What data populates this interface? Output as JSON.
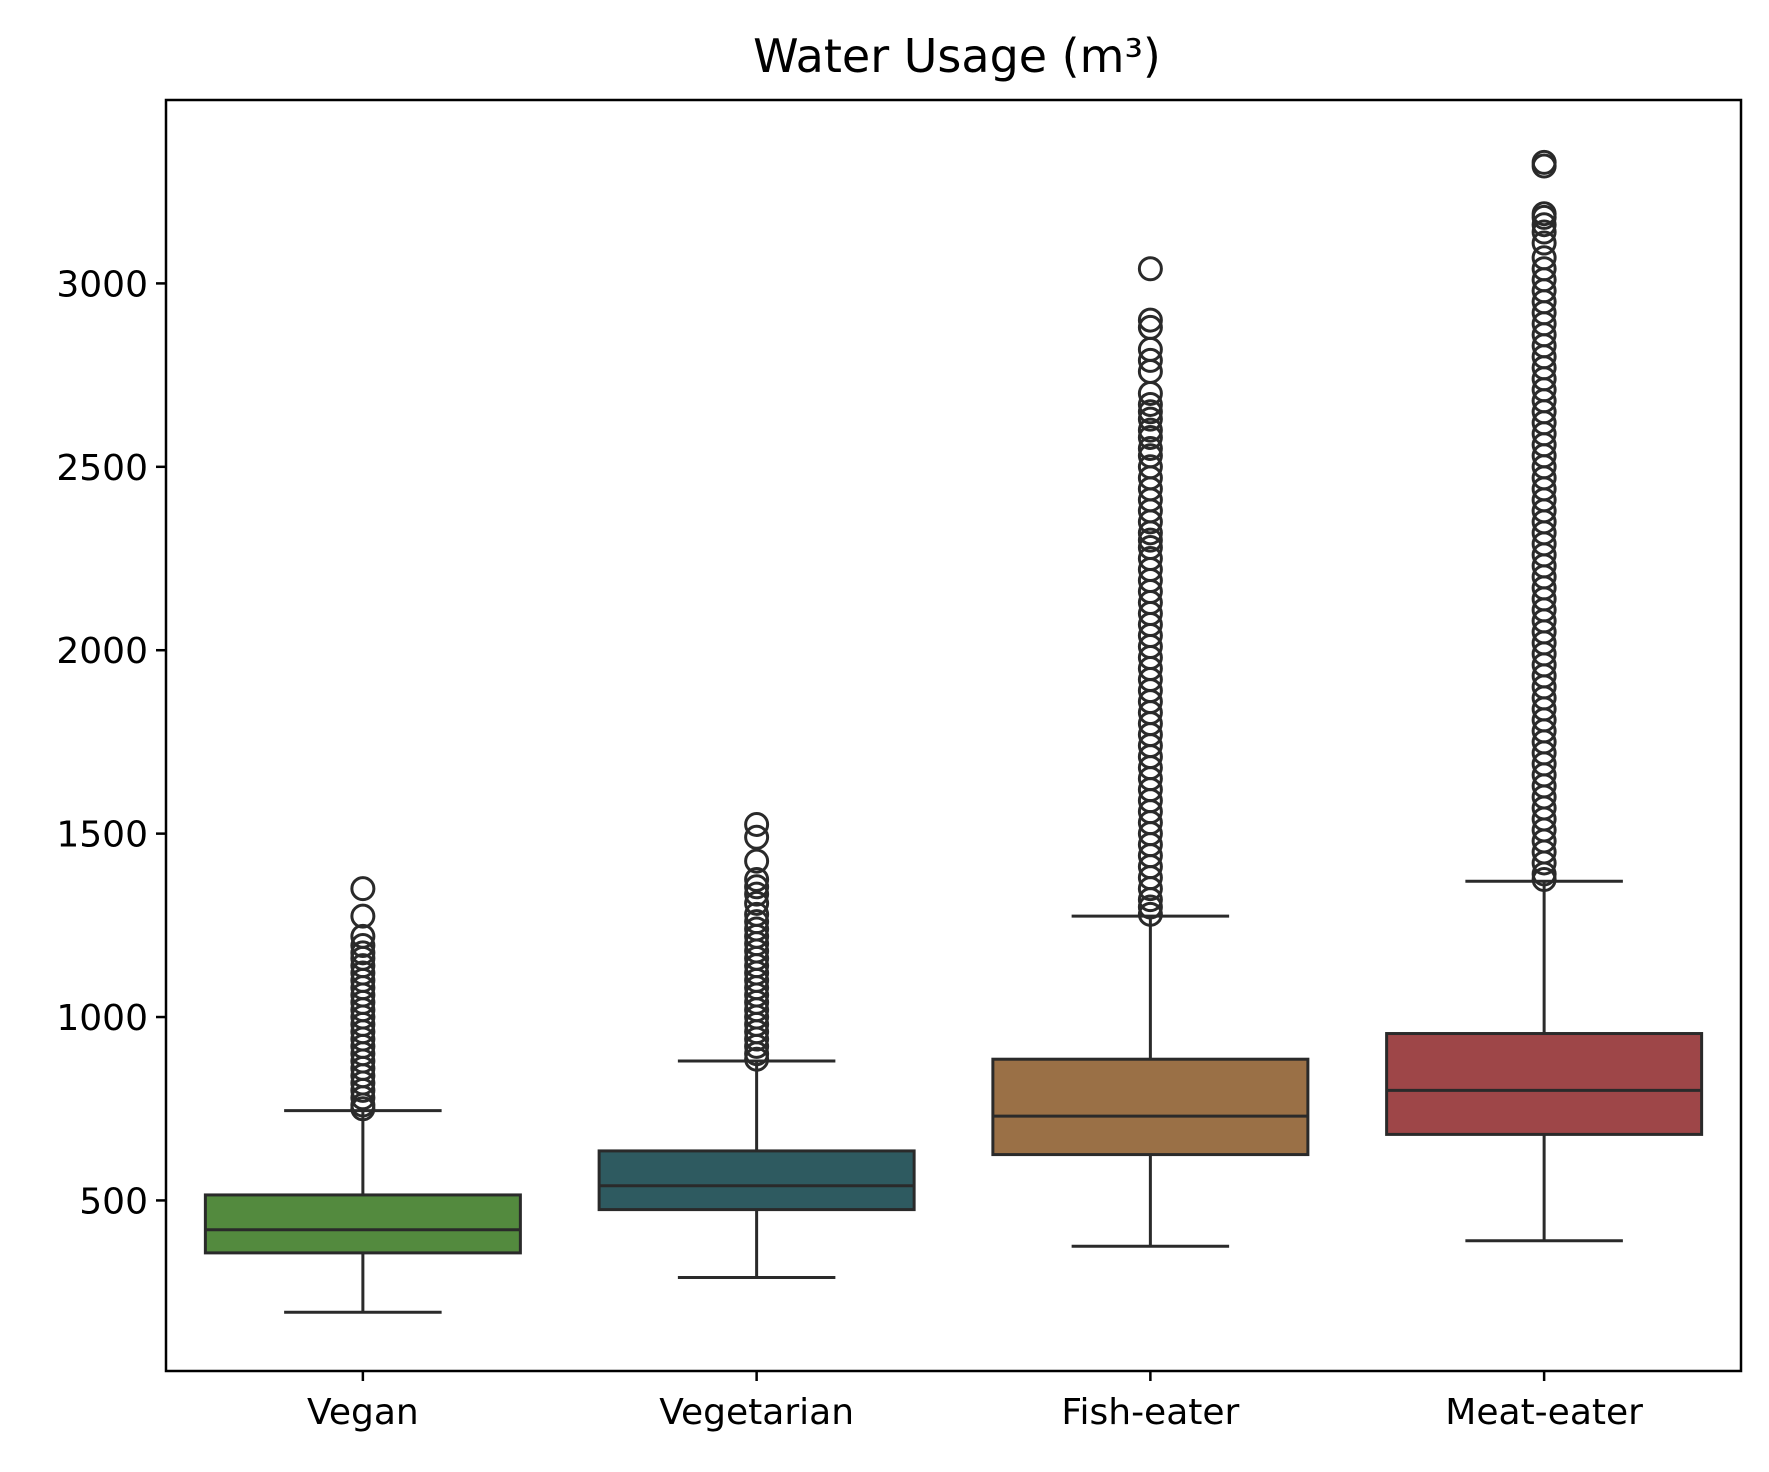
{
  "chart_data": {
    "type": "box",
    "title": "Water Usage (m³)",
    "xlabel": "",
    "ylabel": "",
    "ylim": [
      35,
      3500
    ],
    "yticks": [
      500,
      1000,
      1500,
      2000,
      2500,
      3000
    ],
    "categories": [
      "Vegan",
      "Vegetarian",
      "Fish-eater",
      "Meat-eater"
    ],
    "grid": false,
    "legend": "none",
    "boxes": [
      {
        "category": "Vegan",
        "color": "#538A3E",
        "whisker_low": 195,
        "q1": 357,
        "median": 420,
        "q3": 515,
        "whisker_high": 745,
        "outliers": [
          1350,
          1275,
          1220,
          1195,
          1175,
          1160,
          1140,
          1120,
          1100,
          1080,
          1060,
          1040,
          1020,
          1000,
          980,
          960,
          940,
          920,
          900,
          880,
          860,
          840,
          820,
          800,
          780,
          760,
          750
        ]
      },
      {
        "category": "Vegetarian",
        "color": "#2E5A60",
        "whisker_low": 290,
        "q1": 475,
        "median": 540,
        "q3": 635,
        "whisker_high": 880,
        "outliers": [
          1525,
          1490,
          1425,
          1375,
          1355,
          1335,
          1310,
          1280,
          1260,
          1240,
          1220,
          1200,
          1180,
          1160,
          1140,
          1120,
          1100,
          1080,
          1060,
          1040,
          1020,
          1000,
          980,
          960,
          940,
          920,
          900,
          885
        ]
      },
      {
        "category": "Fish-eater",
        "color": "#9A7046",
        "whisker_low": 375,
        "q1": 625,
        "median": 730,
        "q3": 885,
        "whisker_high": 1275,
        "outliers": [
          3040,
          2900,
          2880,
          2820,
          2790,
          2760,
          2700,
          2670,
          2650,
          2630,
          2600,
          2580,
          2550,
          2530,
          2500,
          2470,
          2440,
          2410,
          2380,
          2350,
          2320,
          2300,
          2280,
          2250,
          2220,
          2190,
          2160,
          2130,
          2100,
          2070,
          2040,
          2010,
          1980,
          1950,
          1920,
          1890,
          1860,
          1830,
          1800,
          1770,
          1740,
          1710,
          1680,
          1650,
          1620,
          1590,
          1560,
          1530,
          1500,
          1470,
          1440,
          1410,
          1380,
          1350,
          1320,
          1300,
          1280
        ]
      },
      {
        "category": "Meat-eater",
        "color": "#9E4648",
        "whisker_low": 390,
        "q1": 680,
        "median": 800,
        "q3": 955,
        "whisker_high": 1370,
        "outliers": [
          3330,
          3320,
          3190,
          3180,
          3160,
          3140,
          3110,
          3070,
          3040,
          3010,
          2980,
          2950,
          2920,
          2890,
          2860,
          2830,
          2800,
          2770,
          2740,
          2710,
          2680,
          2650,
          2620,
          2590,
          2560,
          2530,
          2500,
          2470,
          2440,
          2410,
          2380,
          2350,
          2320,
          2290,
          2260,
          2230,
          2200,
          2170,
          2140,
          2110,
          2080,
          2050,
          2020,
          1990,
          1960,
          1930,
          1900,
          1870,
          1840,
          1810,
          1780,
          1750,
          1720,
          1690,
          1660,
          1630,
          1600,
          1570,
          1540,
          1510,
          1480,
          1450,
          1420,
          1390,
          1375
        ]
      }
    ],
    "style": {
      "line_color": "#2A2A2A",
      "outlier_edge": "#2A2A2A",
      "axes_color": "#000000",
      "background": "#FFFFFF"
    }
  }
}
